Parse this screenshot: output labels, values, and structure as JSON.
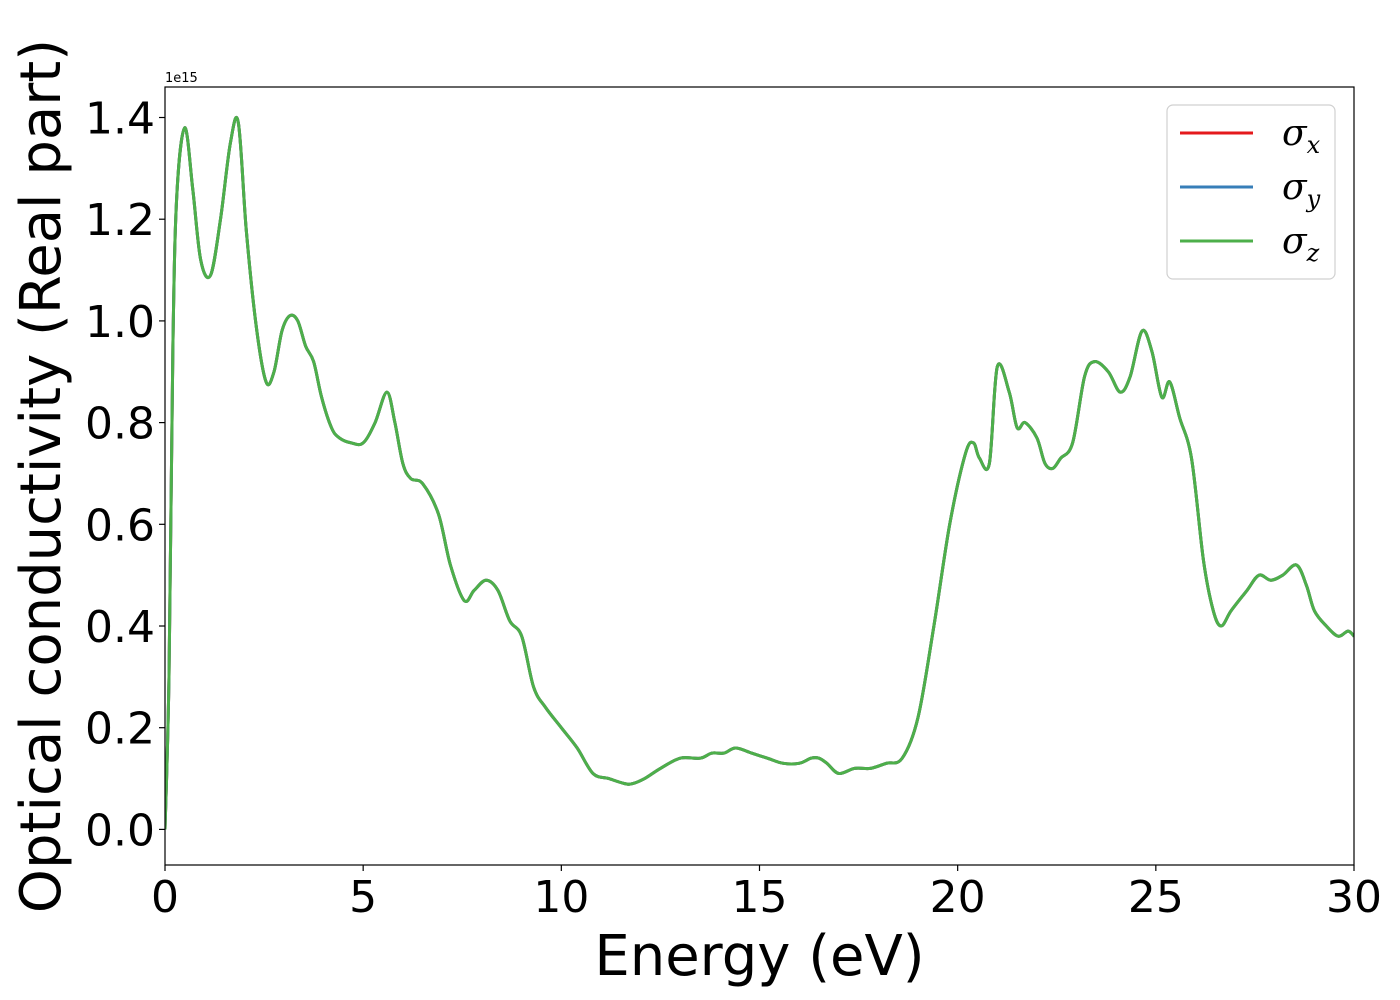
{
  "chart_data": {
    "type": "line",
    "xlabel": "Energy (eV)",
    "ylabel": "Optical conductivity (Real part)",
    "y_offset_text": "1e15",
    "y_scale_factor": 1000000000000000.0,
    "xlim": [
      0,
      30
    ],
    "ylim": [
      -0.07,
      1.46
    ],
    "x_ticks": [
      0,
      5,
      10,
      15,
      20,
      25,
      30
    ],
    "x_tick_labels": [
      "0",
      "5",
      "10",
      "15",
      "20",
      "25",
      "30"
    ],
    "y_ticks": [
      0.0,
      0.2,
      0.4,
      0.6,
      0.8,
      1.0,
      1.2,
      1.4
    ],
    "y_tick_labels": [
      "0.0",
      "0.2",
      "0.4",
      "0.6",
      "0.8",
      "1.0",
      "1.2",
      "1.4"
    ],
    "grid": false,
    "legend_position": "top-right",
    "series": [
      {
        "name": "σx",
        "base": "σ",
        "sub": "x",
        "color": "#e41a1c",
        "same_as": "σz"
      },
      {
        "name": "σy",
        "base": "σ",
        "sub": "y",
        "color": "#377eb8",
        "same_as": "σz"
      },
      {
        "name": "σz",
        "base": "σ",
        "sub": "z",
        "color": "#4daf4a"
      }
    ],
    "x": [
      0,
      0.1,
      0.2,
      0.3,
      0.5,
      0.7,
      0.9,
      1.15,
      1.4,
      1.65,
      1.85,
      2.05,
      2.3,
      2.55,
      2.75,
      2.95,
      3.15,
      3.35,
      3.55,
      3.75,
      3.95,
      4.2,
      4.4,
      4.7,
      5.0,
      5.3,
      5.6,
      5.8,
      6.0,
      6.2,
      6.5,
      6.9,
      7.2,
      7.55,
      7.8,
      8.1,
      8.4,
      8.7,
      9.0,
      9.3,
      9.6,
      10.0,
      10.4,
      10.8,
      11.2,
      11.6,
      11.8,
      12.1,
      12.5,
      13.0,
      13.5,
      13.8,
      14.1,
      14.4,
      14.8,
      15.2,
      15.6,
      16.0,
      16.3,
      16.5,
      16.7,
      17.0,
      17.4,
      17.8,
      18.2,
      18.6,
      19.0,
      19.4,
      19.8,
      20.2,
      20.4,
      20.55,
      20.8,
      21.0,
      21.3,
      21.5,
      21.7,
      22.0,
      22.2,
      22.4,
      22.6,
      22.9,
      23.2,
      23.45,
      23.8,
      24.1,
      24.35,
      24.65,
      24.9,
      25.15,
      25.35,
      25.6,
      25.9,
      26.2,
      26.45,
      26.65,
      26.9,
      27.3,
      27.6,
      27.9,
      28.2,
      28.55,
      28.8,
      29.0,
      29.3,
      29.6,
      29.85,
      30.0
    ],
    "y": [
      0.0,
      0.3,
      0.95,
      1.25,
      1.38,
      1.26,
      1.12,
      1.09,
      1.2,
      1.35,
      1.39,
      1.18,
      0.99,
      0.88,
      0.9,
      0.98,
      1.01,
      1.0,
      0.95,
      0.92,
      0.85,
      0.79,
      0.77,
      0.76,
      0.76,
      0.8,
      0.86,
      0.8,
      0.72,
      0.69,
      0.68,
      0.62,
      0.52,
      0.45,
      0.47,
      0.49,
      0.47,
      0.41,
      0.38,
      0.28,
      0.24,
      0.2,
      0.16,
      0.11,
      0.1,
      0.09,
      0.09,
      0.1,
      0.12,
      0.14,
      0.14,
      0.15,
      0.15,
      0.16,
      0.15,
      0.14,
      0.13,
      0.13,
      0.14,
      0.14,
      0.13,
      0.11,
      0.12,
      0.12,
      0.13,
      0.14,
      0.22,
      0.4,
      0.6,
      0.74,
      0.76,
      0.73,
      0.72,
      0.91,
      0.86,
      0.79,
      0.8,
      0.77,
      0.72,
      0.71,
      0.73,
      0.76,
      0.89,
      0.92,
      0.9,
      0.86,
      0.89,
      0.98,
      0.94,
      0.85,
      0.88,
      0.81,
      0.73,
      0.53,
      0.43,
      0.4,
      0.43,
      0.47,
      0.5,
      0.49,
      0.5,
      0.52,
      0.48,
      0.43,
      0.4,
      0.38,
      0.39,
      0.38
    ]
  }
}
